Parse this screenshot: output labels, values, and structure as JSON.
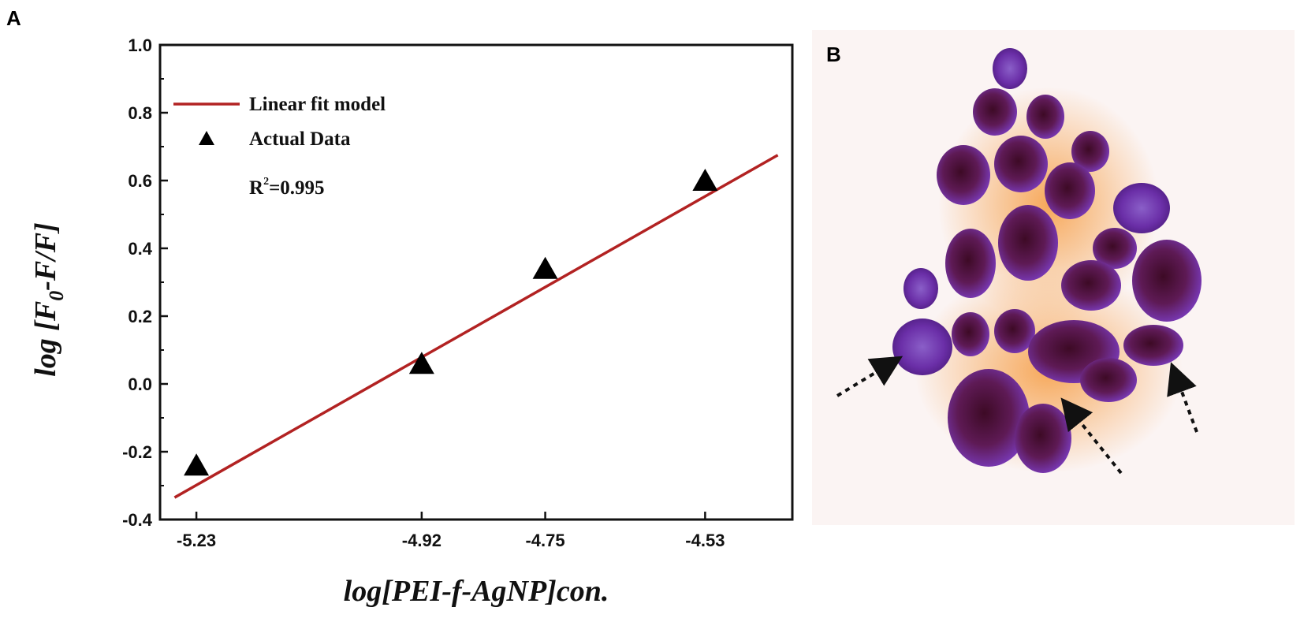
{
  "panels": {
    "a_label": "A",
    "b_label": "B"
  },
  "chart_data": {
    "type": "scatter",
    "title": "",
    "xlabel": "log[PEI-f-AgNP]con.",
    "ylabel": {
      "prefix": "log [F",
      "subscript": "0",
      "suffix": "-F/F]"
    },
    "xlim": [
      -5.28,
      -4.41
    ],
    "ylim": [
      -0.4,
      1.0
    ],
    "x_ticks": [
      -5.23,
      -4.92,
      -4.75,
      -4.53
    ],
    "x_tick_labels": [
      "-5.23",
      "-4.92",
      "-4.75",
      "-4.53"
    ],
    "y_ticks": [
      -0.4,
      -0.2,
      0.0,
      0.2,
      0.4,
      0.6,
      0.8,
      1.0
    ],
    "y_tick_labels": [
      "-0.4",
      "-0.2",
      "0.0",
      "0.2",
      "0.4",
      "0.6",
      "0.8",
      "1.0"
    ],
    "grid": false,
    "legend_position": "top-left",
    "series": [
      {
        "name": "Actual Data",
        "kind": "points",
        "color": "#000000",
        "x": [
          -5.23,
          -4.92,
          -4.75,
          -4.53
        ],
        "y": [
          -0.24,
          0.06,
          0.34,
          0.6
        ]
      },
      {
        "name": "Linear fit model",
        "kind": "line",
        "color": "#b22222",
        "x": [
          -5.26,
          -4.43
        ],
        "y": [
          -0.335,
          0.675
        ]
      }
    ],
    "annotation": {
      "prefix": "R",
      "superscript": "2",
      "suffix": "=0.995"
    }
  },
  "micrograph": {
    "background": "#fbf4f3",
    "cell_dark": "#5a1030",
    "cell_violet": "#6a2ba0",
    "stain_orange": "#f08a3a"
  }
}
